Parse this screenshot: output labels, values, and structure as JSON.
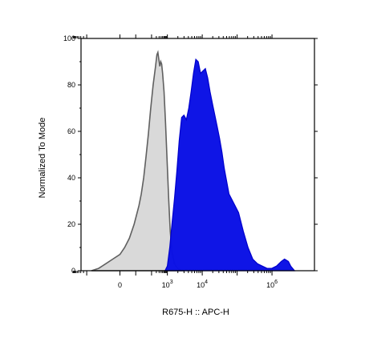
{
  "chart_data": {
    "type": "area",
    "xlabel": "R675-H :: APC-H",
    "ylabel": "Normalized To Mode",
    "ylim": [
      0,
      100
    ],
    "yticks": [
      0,
      20,
      40,
      60,
      80,
      100
    ],
    "xscale": "biexponential",
    "xticks": [
      {
        "label": "0",
        "value": 0
      },
      {
        "label": "10",
        "sup": "3",
        "value": 1000
      },
      {
        "label": "10",
        "sup": "4",
        "value": 10000
      },
      {
        "label": "10",
        "sup": "6",
        "value": 1000000
      }
    ],
    "grid": false,
    "legend": "none",
    "series": [
      {
        "fill": "#d9d9d9",
        "stroke": "#606060",
        "points": [
          [
            -0.6,
            0
          ],
          [
            -0.45,
            1
          ],
          [
            -0.3,
            3
          ],
          [
            -0.15,
            5
          ],
          [
            0.0,
            7
          ],
          [
            0.1,
            10
          ],
          [
            0.2,
            14
          ],
          [
            0.3,
            20
          ],
          [
            0.4,
            28
          ],
          [
            0.45,
            33
          ],
          [
            0.5,
            40
          ],
          [
            0.55,
            49
          ],
          [
            0.6,
            59
          ],
          [
            0.65,
            70
          ],
          [
            0.7,
            80
          ],
          [
            0.75,
            88
          ],
          [
            0.78,
            93
          ],
          [
            0.8,
            94
          ],
          [
            0.82,
            91
          ],
          [
            0.84,
            88
          ],
          [
            0.86,
            90
          ],
          [
            0.88,
            89
          ],
          [
            0.9,
            85
          ],
          [
            0.93,
            77
          ],
          [
            0.96,
            64
          ],
          [
            1.0,
            45
          ],
          [
            1.03,
            30
          ],
          [
            1.06,
            17
          ],
          [
            1.1,
            8
          ],
          [
            1.15,
            3
          ],
          [
            1.22,
            1
          ],
          [
            1.3,
            0
          ]
        ]
      },
      {
        "fill": "#0a10e6",
        "stroke": "#0000cc",
        "points": [
          [
            0.95,
            0
          ],
          [
            1.0,
            2
          ],
          [
            1.05,
            10
          ],
          [
            1.1,
            21
          ],
          [
            1.15,
            31
          ],
          [
            1.2,
            43
          ],
          [
            1.25,
            56
          ],
          [
            1.3,
            66
          ],
          [
            1.35,
            67
          ],
          [
            1.4,
            65
          ],
          [
            1.45,
            70
          ],
          [
            1.5,
            77
          ],
          [
            1.55,
            85
          ],
          [
            1.6,
            91
          ],
          [
            1.65,
            90
          ],
          [
            1.7,
            85
          ],
          [
            1.75,
            86
          ],
          [
            1.8,
            87
          ],
          [
            1.85,
            83
          ],
          [
            1.9,
            77
          ],
          [
            1.95,
            72
          ],
          [
            2.0,
            67
          ],
          [
            2.05,
            62
          ],
          [
            2.1,
            57
          ],
          [
            2.15,
            51
          ],
          [
            2.2,
            44
          ],
          [
            2.3,
            33
          ],
          [
            2.4,
            29
          ],
          [
            2.5,
            25
          ],
          [
            2.6,
            17
          ],
          [
            2.7,
            10
          ],
          [
            2.8,
            5
          ],
          [
            2.9,
            3
          ],
          [
            3.0,
            2
          ],
          [
            3.1,
            1
          ],
          [
            3.2,
            1
          ],
          [
            3.3,
            2
          ],
          [
            3.4,
            4
          ],
          [
            3.47,
            5
          ],
          [
            3.55,
            4
          ],
          [
            3.6,
            2
          ],
          [
            3.68,
            0
          ]
        ]
      }
    ]
  }
}
